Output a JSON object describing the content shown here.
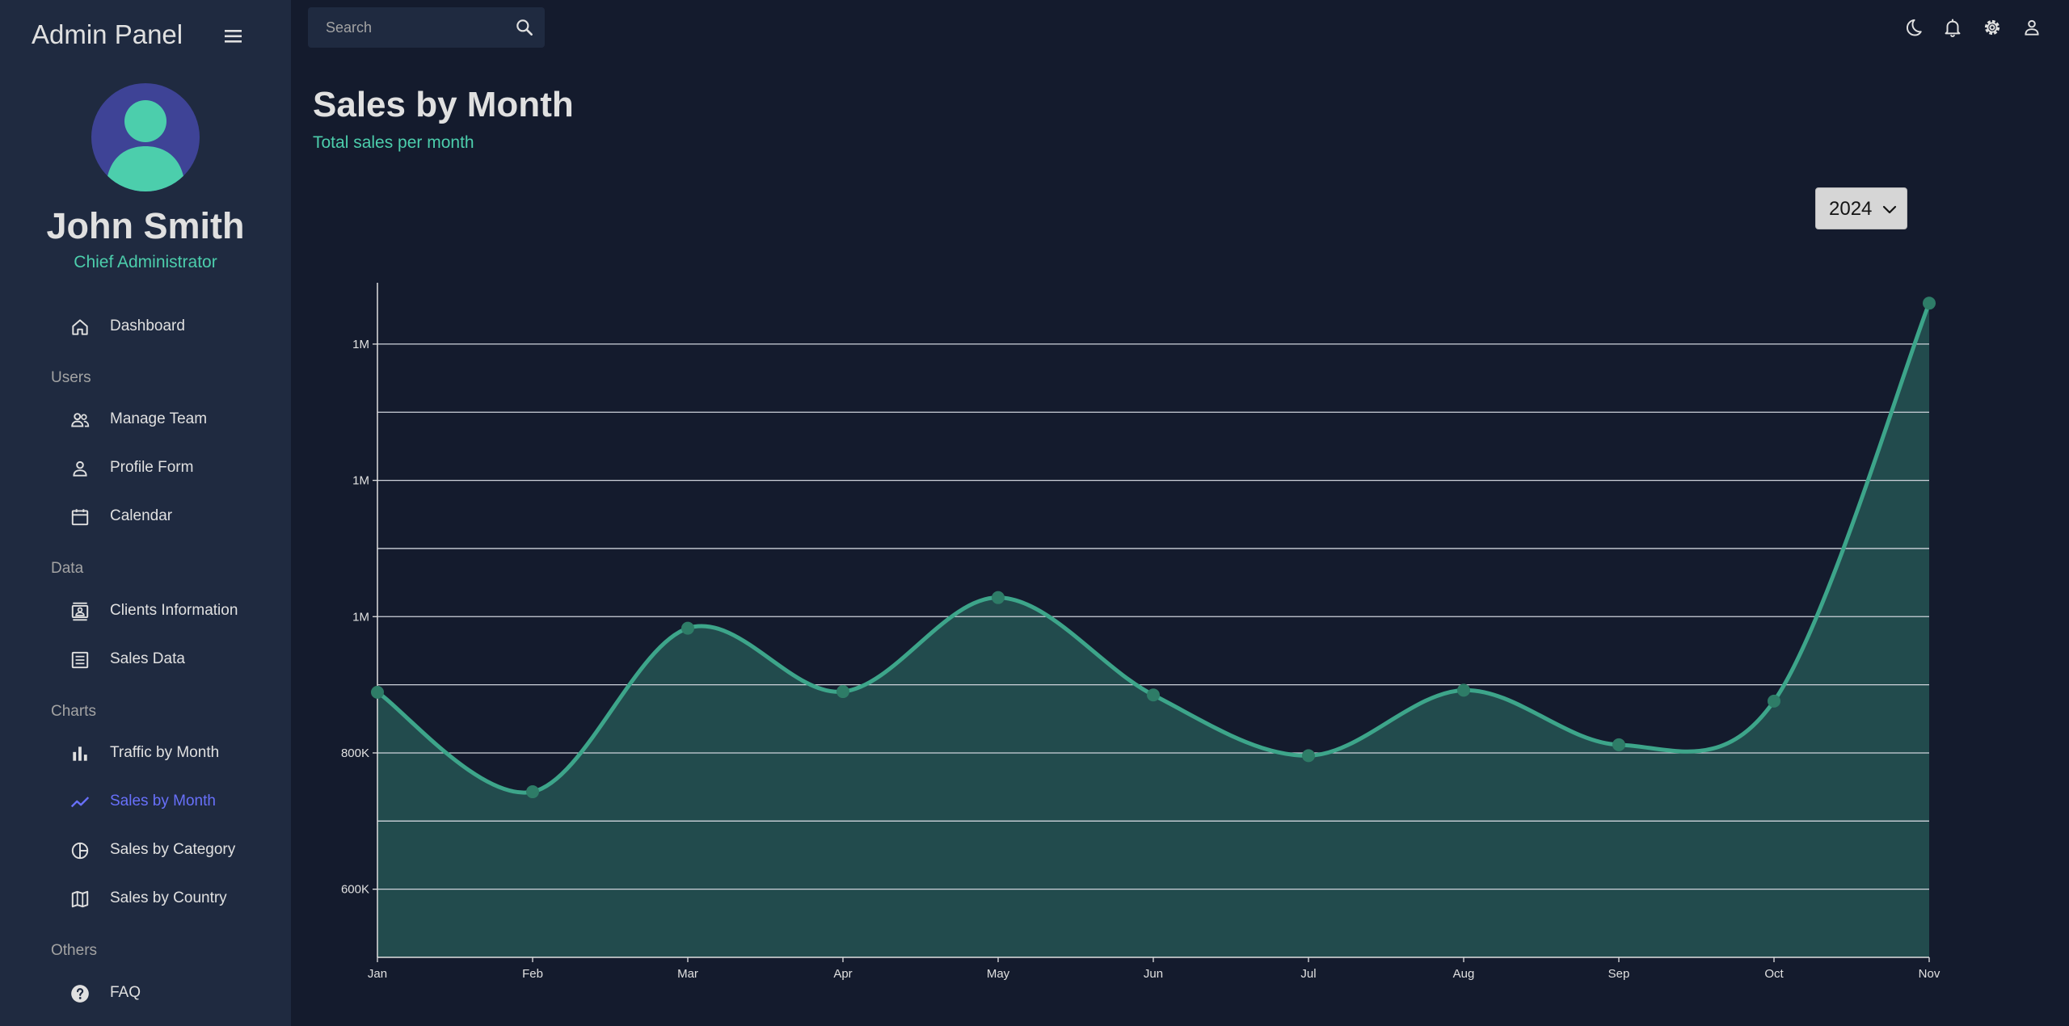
{
  "app": {
    "title": "Admin Panel"
  },
  "user": {
    "name": "John Smith",
    "role": "Chief Administrator"
  },
  "sidebar": {
    "dashboard": {
      "label": "Dashboard",
      "icon": "home-icon"
    },
    "sections": {
      "users": "Users",
      "data": "Data",
      "charts": "Charts",
      "others": "Others"
    },
    "users_items": [
      {
        "label": "Manage Team",
        "icon": "people-icon"
      },
      {
        "label": "Profile Form",
        "icon": "person-icon"
      },
      {
        "label": "Calendar",
        "icon": "calendar-icon"
      }
    ],
    "data_items": [
      {
        "label": "Clients Information",
        "icon": "contacts-icon"
      },
      {
        "label": "Sales Data",
        "icon": "receipt-icon"
      }
    ],
    "charts_items": [
      {
        "label": "Traffic by Month",
        "icon": "bar-chart-icon"
      },
      {
        "label": "Sales by Month",
        "icon": "line-chart-icon",
        "active": true
      },
      {
        "label": "Sales by Category",
        "icon": "pie-chart-icon"
      },
      {
        "label": "Sales by Country",
        "icon": "map-icon"
      }
    ],
    "others_items": [
      {
        "label": "FAQ",
        "icon": "help-icon"
      }
    ]
  },
  "search": {
    "placeholder": "Search"
  },
  "header": {
    "title": "Sales by Month",
    "subtitle": "Total sales per month"
  },
  "year_select": {
    "value": "2024"
  },
  "colors": {
    "background": "#141b2d",
    "sidebar": "#1f2a40",
    "accent": "#4cceac",
    "active": "#6870fa",
    "line": "#3da58a",
    "fill": "#224b4d"
  },
  "chart_data": {
    "type": "area",
    "categories": [
      "Jan",
      "Feb",
      "Mar",
      "Apr",
      "May",
      "Jun",
      "Jul",
      "Aug",
      "Sep",
      "Oct",
      "Nov"
    ],
    "series": [
      {
        "values": [
          889000,
          743000,
          983000,
          890000,
          1028000,
          885000,
          796000,
          892000,
          812000,
          876000,
          1460000
        ]
      }
    ],
    "y_ticks": [
      {
        "value": 500000,
        "label": ""
      },
      {
        "value": 600000,
        "label": "600K"
      },
      {
        "value": 700000,
        "label": ""
      },
      {
        "value": 800000,
        "label": "800K"
      },
      {
        "value": 900000,
        "label": ""
      },
      {
        "value": 1000000,
        "label": "1M"
      },
      {
        "value": 1100000,
        "label": ""
      },
      {
        "value": 1200000,
        "label": "1M"
      },
      {
        "value": 1300000,
        "label": ""
      },
      {
        "value": 1400000,
        "label": "1M"
      }
    ],
    "ylim": [
      500000,
      1490000
    ],
    "grid": true,
    "legend": "none"
  }
}
